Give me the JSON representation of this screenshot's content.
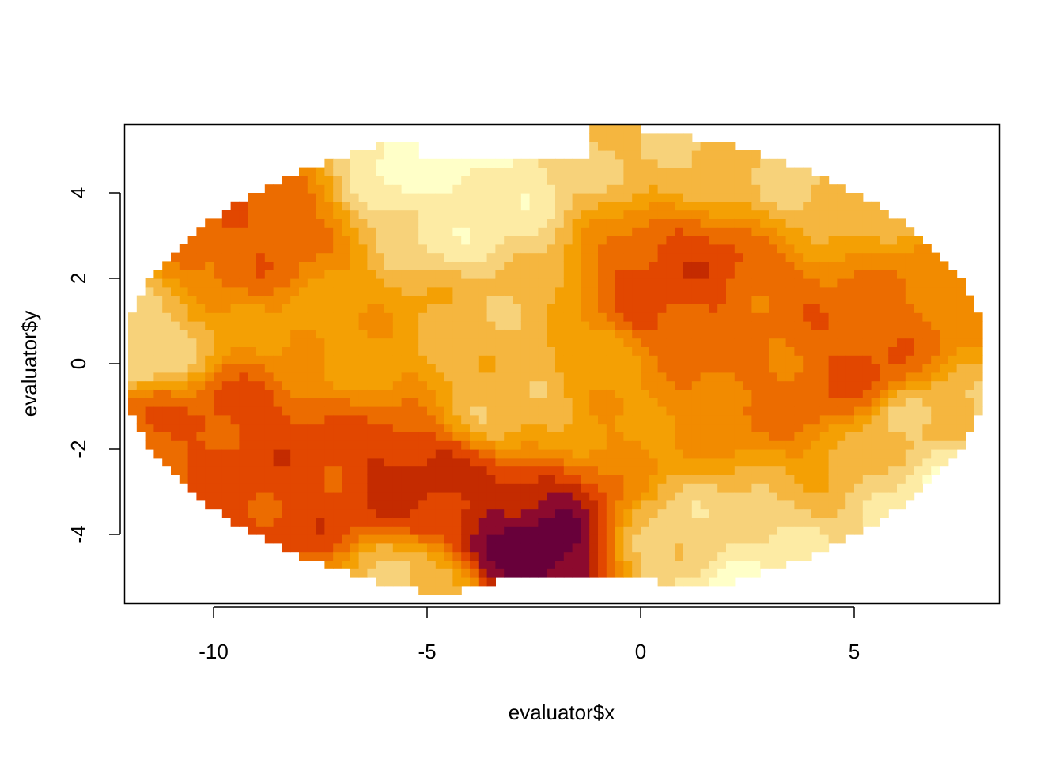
{
  "chart_data": {
    "type": "heatmap",
    "title": "",
    "xlabel": "evaluator$x",
    "ylabel": "evaluator$y",
    "xlim": [
      -12.2,
      8.2
    ],
    "ylim": [
      -5.6,
      5.6
    ],
    "x_ticks": [
      -10,
      -5,
      0,
      5
    ],
    "x_tick_labels": [
      "-10",
      "-5",
      "0",
      "5"
    ],
    "y_ticks": [
      -4,
      -2,
      0,
      2,
      4
    ],
    "y_tick_labels": [
      "-4",
      "-2",
      "0",
      "2",
      "4"
    ],
    "grid": false,
    "legend": "none",
    "colormap": [
      "#FFFFC8",
      "#FDEBA4",
      "#F7D27A",
      "#F5B63F",
      "#F4A004",
      "#F28B00",
      "#EC6C00",
      "#E24700",
      "#C42B00",
      "#8C0A2E",
      "#68003A"
    ],
    "domain": {
      "shape": "ellipse",
      "center": [
        -2.0,
        0.0
      ],
      "radius_x": 10.1,
      "radius_y": 5.6,
      "top_cutout": {
        "x": [
          -5.3,
          -1.3
        ],
        "y_above": 4.9
      },
      "bottom_cutout": {
        "x": [
          -5.0,
          2.0
        ],
        "center_x": -1.5,
        "y_below": -4.9
      }
    },
    "blobs": [
      {
        "x": -2.7,
        "y": -4.3,
        "value": 1.0
      },
      {
        "x": -3.3,
        "y": -3.6,
        "value": 0.82
      },
      {
        "x": -5.4,
        "y": -2.7,
        "value": 0.75
      },
      {
        "x": -4.5,
        "y": -3.2,
        "value": 0.72
      },
      {
        "x": -8.0,
        "y": -3.2,
        "value": 0.68
      },
      {
        "x": -9.2,
        "y": -1.5,
        "value": 0.68
      },
      {
        "x": -11.8,
        "y": -1.3,
        "value": 0.62
      },
      {
        "x": -9.3,
        "y": 3.2,
        "value": 0.62
      },
      {
        "x": 1.0,
        "y": 2.2,
        "value": 0.68
      },
      {
        "x": 0.5,
        "y": 1.1,
        "value": 0.66
      },
      {
        "x": 4.9,
        "y": 0.0,
        "value": 0.66
      },
      {
        "x": 4.2,
        "y": -0.2,
        "value": 0.6
      },
      {
        "x": 2.8,
        "y": 0.3,
        "value": 0.55
      },
      {
        "x": -4.5,
        "y": 4.8,
        "value": 0.02
      },
      {
        "x": -3.8,
        "y": 3.6,
        "value": 0.14
      },
      {
        "x": -3.0,
        "y": -1.0,
        "value": 0.3
      },
      {
        "x": -3.0,
        "y": 0.6,
        "value": 0.3
      },
      {
        "x": 2.2,
        "y": -5.1,
        "value": 0.08
      },
      {
        "x": 1.3,
        "y": -4.3,
        "value": 0.22
      },
      {
        "x": 7.4,
        "y": -2.6,
        "value": 0.1
      },
      {
        "x": 6.5,
        "y": -1.5,
        "value": 0.28
      },
      {
        "x": -11.9,
        "y": 0.2,
        "value": 0.2
      },
      {
        "x": 0.6,
        "y": 5.0,
        "value": 0.28
      },
      {
        "x": 4.0,
        "y": 4.5,
        "value": 0.26
      },
      {
        "x": -5.3,
        "y": -5.1,
        "value": 0.24
      },
      {
        "x": -0.8,
        "y": 0.0,
        "value": 0.42
      },
      {
        "x": -7.0,
        "y": 0.5,
        "value": 0.42
      }
    ]
  }
}
